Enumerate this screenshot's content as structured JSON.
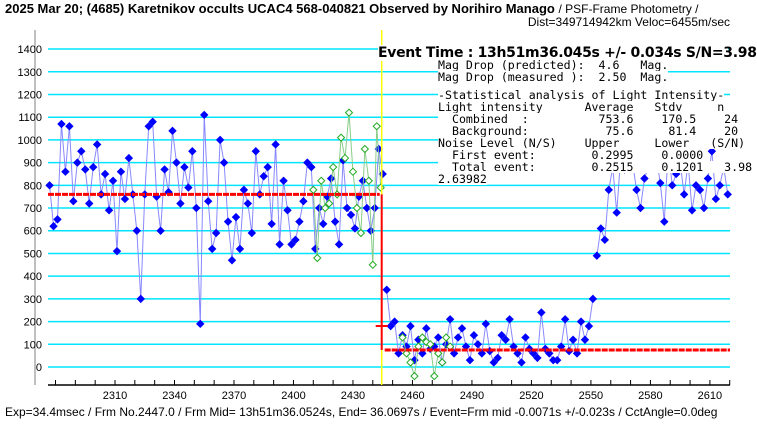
{
  "header": {
    "title": "2025 Mar 20; (4685) Karetnikov occults UCAC4 568-040821 Observed by Norihiro Manago",
    "subtitle": "/ PSF-Frame Photometry /",
    "dist": "Dist=349714942km Veloc=6455m/sec"
  },
  "footer": "Exp=34.4msec / Frm No.2447.0 / Frm Mid= 13h51m36.0524s,  End= 36.0697s / Event=Frm mid -0.0071s +/-0.023s / CctAngle=0.0deg",
  "event": {
    "time": "Event Time : 13h51m36.045s  +/- 0.034s  S/N=3.98"
  },
  "stats": {
    "lines": [
      "Mag Drop (predicted):  4.6   Mag.",
      "Mag Drop (measured ):  2.50  Mag.",
      "-Statistical analysis of Light Intensity-",
      "Light intensity      Average   Stdv     n",
      "  Combined  :          753.6    170.5    24",
      "  Background:           75.6     81.4    20",
      "Noise Level (N/S)    Upper     Lower   (S/N)",
      "  First event:        0.2995    0.0000",
      "  Total event:        0.2515    0.1201   3.98",
      "2.63982"
    ]
  },
  "colors": {
    "target": "#0000ff",
    "target_line": "#8888ff",
    "comparison": "#22aa22",
    "fit": "#ff0000",
    "grid": "#00e5ff",
    "event": "#ffff00"
  },
  "chart_data": {
    "type": "scatter",
    "xlim": [
      2276,
      2620
    ],
    "ylim": [
      -100,
      1500
    ],
    "xticks": [
      2310,
      2340,
      2370,
      2400,
      2430,
      2460,
      2490,
      2520,
      2550,
      2580,
      2610
    ],
    "yticks": [
      0,
      100,
      200,
      300,
      400,
      500,
      600,
      700,
      800,
      900,
      1000,
      1100,
      1200,
      1300,
      1400
    ],
    "event_frame": 2445,
    "levels": {
      "before": 760,
      "after": 75
    },
    "series": [
      {
        "name": "target-before",
        "start": 2277,
        "step": 2,
        "values": [
          800,
          620,
          650,
          1070,
          860,
          1060,
          730,
          900,
          950,
          870,
          720,
          880,
          980,
          760,
          850,
          690,
          820,
          510,
          860,
          740,
          920,
          760,
          600,
          300,
          760,
          1060,
          1080,
          750,
          600,
          870,
          770,
          1040,
          900,
          720,
          880,
          790,
          950,
          700,
          190,
          1110,
          730,
          520,
          590,
          1000,
          900,
          640,
          470,
          660,
          520,
          780,
          720,
          590,
          950,
          760,
          840,
          880,
          630,
          980,
          540,
          820,
          690,
          540,
          560,
          640,
          730,
          900,
          880,
          520,
          700,
          630,
          750,
          830,
          640,
          540,
          910,
          700,
          670,
          610,
          750,
          820,
          700,
          600,
          700,
          960,
          850
        ]
      },
      {
        "name": "target-during",
        "start": 2447,
        "step": 2,
        "values": [
          340,
          180,
          200,
          60,
          140,
          90,
          180,
          30,
          120,
          60,
          170,
          80,
          90,
          130,
          20,
          100,
          210,
          60,
          130,
          170,
          90,
          30,
          140,
          100,
          60,
          190,
          70,
          20,
          40,
          140,
          120,
          210,
          90,
          60,
          20,
          130,
          80,
          60,
          40,
          240,
          80,
          60,
          30,
          30,
          90,
          210,
          70,
          120,
          60,
          200,
          120,
          180,
          300
        ]
      },
      {
        "name": "target-after",
        "start": 2553,
        "step": 2,
        "values": [
          490,
          610,
          560,
          780,
          880,
          680,
          920,
          870,
          990,
          900,
          780,
          700,
          830,
          880,
          930,
          920,
          810,
          640,
          960,
          800,
          850,
          900,
          760,
          900,
          690,
          800,
          780,
          700,
          830,
          950,
          740,
          800,
          880,
          760
        ]
      },
      {
        "name": "comparison-1",
        "start": 2410,
        "step": 2,
        "values": [
          780,
          480,
          820,
          700,
          720,
          880,
          760,
          1010,
          920,
          1120,
          860,
          700,
          590,
          960,
          820,
          450,
          1060,
          790
        ]
      },
      {
        "name": "comparison-2",
        "start": 2455,
        "step": 2,
        "values": [
          130,
          60,
          20,
          -40,
          90,
          130,
          110,
          100,
          -40,
          60,
          20,
          130,
          90
        ]
      }
    ]
  }
}
